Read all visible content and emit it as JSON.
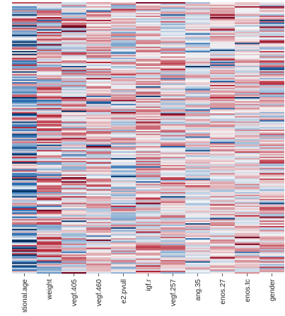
{
  "chart_data": {
    "type": "heatmap",
    "title": "",
    "xlabel": "",
    "ylabel": "",
    "columns": [
      "gestational.age",
      "weight",
      "vegf.405",
      "vegf.460",
      "e2.pvull",
      "igf.r",
      "vegf.257",
      "ang.35",
      "enos.27",
      "enos.tc",
      "gender"
    ],
    "row_count": 200,
    "colormap": {
      "name": "RdBu_r",
      "low_color": "#2166ac",
      "mid_color": "#f7f7f7",
      "high_color": "#b2182b",
      "range": [
        -1,
        1
      ]
    },
    "legend": "none",
    "grid": false
  }
}
